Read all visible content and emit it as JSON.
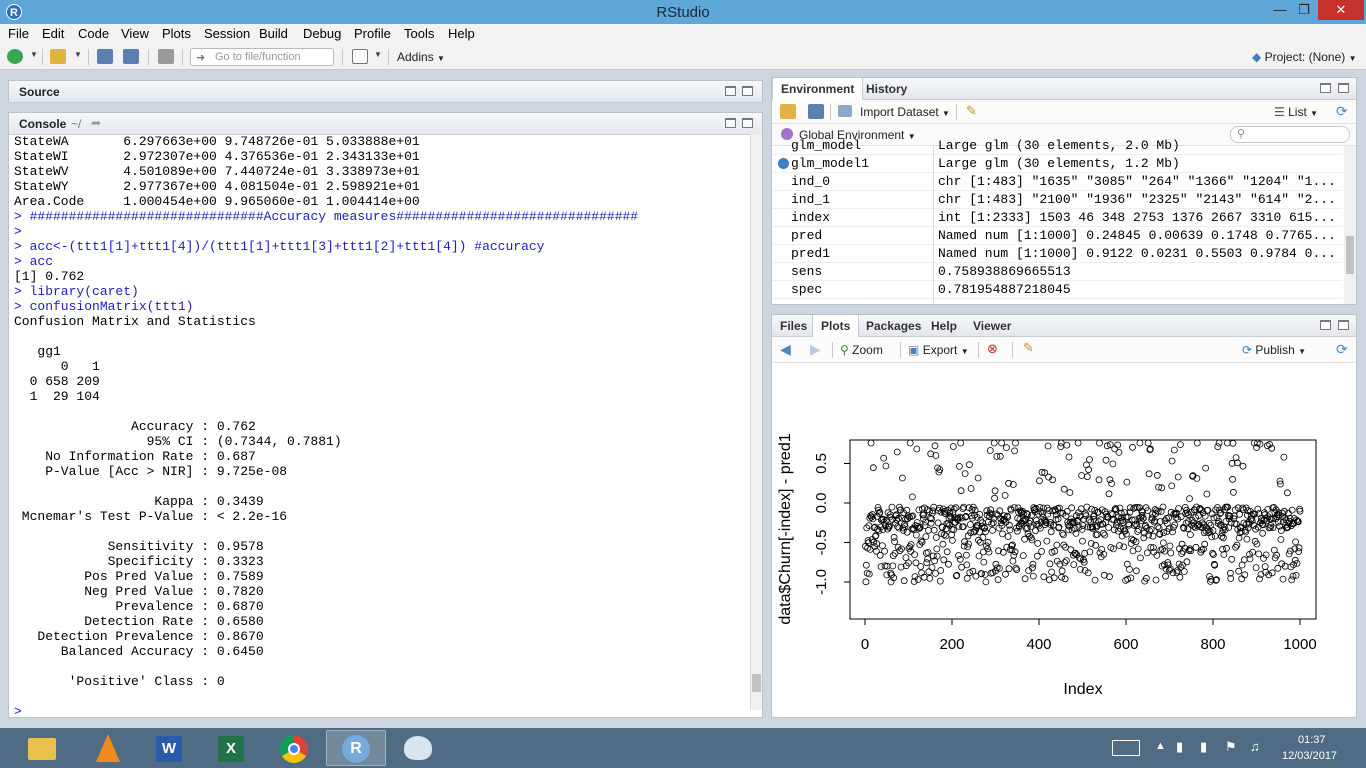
{
  "window": {
    "title": "RStudio",
    "app_icon": "R"
  },
  "menubar": {
    "items": [
      "File",
      "Edit",
      "Code",
      "View",
      "Plots",
      "Session",
      "Build",
      "Debug",
      "Profile",
      "Tools",
      "Help"
    ]
  },
  "toolbar": {
    "goto_placeholder": "Go to file/function",
    "addins_label": "Addins",
    "project_label": "Project: (None)"
  },
  "source_pane": {
    "title": "Source"
  },
  "console": {
    "title": "Console",
    "path": "~/",
    "lines": [
      {
        "text": "StateWA       6.297663e+00 9.748726e-01 5.033888e+01",
        "kind": "out"
      },
      {
        "text": "StateWI       2.972307e+00 4.376536e-01 2.343133e+01",
        "kind": "out"
      },
      {
        "text": "StateWV       4.501089e+00 7.440724e-01 3.338973e+01",
        "kind": "out"
      },
      {
        "text": "StateWY       2.977367e+00 4.081504e-01 2.598921e+01",
        "kind": "out"
      },
      {
        "text": "Area.Code     1.000454e+00 9.965060e-01 1.004414e+00",
        "kind": "out"
      },
      {
        "text": "> ##############################Accuracy measures###############################",
        "kind": "cmd"
      },
      {
        "text": ">",
        "kind": "cmd"
      },
      {
        "text": "> acc<-(ttt1[1]+ttt1[4])/(ttt1[1]+ttt1[3]+ttt1[2]+ttt1[4]) #accuracy",
        "kind": "cmd"
      },
      {
        "text": "> acc",
        "kind": "cmd"
      },
      {
        "text": "[1] 0.762",
        "kind": "out"
      },
      {
        "text": "> library(caret)",
        "kind": "cmd"
      },
      {
        "text": "> confusionMatrix(ttt1)",
        "kind": "cmd"
      },
      {
        "text": "Confusion Matrix and Statistics",
        "kind": "out"
      },
      {
        "text": "",
        "kind": "out"
      },
      {
        "text": "   gg1",
        "kind": "out"
      },
      {
        "text": "      0   1",
        "kind": "out"
      },
      {
        "text": "  0 658 209",
        "kind": "out"
      },
      {
        "text": "  1  29 104",
        "kind": "out"
      },
      {
        "text": "",
        "kind": "out"
      },
      {
        "text": "               Accuracy : 0.762",
        "kind": "out"
      },
      {
        "text": "                 95% CI : (0.7344, 0.7881)",
        "kind": "out"
      },
      {
        "text": "    No Information Rate : 0.687",
        "kind": "out"
      },
      {
        "text": "    P-Value [Acc > NIR] : 9.725e-08",
        "kind": "out"
      },
      {
        "text": "",
        "kind": "out"
      },
      {
        "text": "                  Kappa : 0.3439",
        "kind": "out"
      },
      {
        "text": " Mcnemar's Test P-Value : < 2.2e-16",
        "kind": "out"
      },
      {
        "text": "",
        "kind": "out"
      },
      {
        "text": "            Sensitivity : 0.9578",
        "kind": "out"
      },
      {
        "text": "            Specificity : 0.3323",
        "kind": "out"
      },
      {
        "text": "         Pos Pred Value : 0.7589",
        "kind": "out"
      },
      {
        "text": "         Neg Pred Value : 0.7820",
        "kind": "out"
      },
      {
        "text": "             Prevalence : 0.6870",
        "kind": "out"
      },
      {
        "text": "         Detection Rate : 0.6580",
        "kind": "out"
      },
      {
        "text": "   Detection Prevalence : 0.8670",
        "kind": "out"
      },
      {
        "text": "      Balanced Accuracy : 0.6450",
        "kind": "out"
      },
      {
        "text": "",
        "kind": "out"
      },
      {
        "text": "       'Positive' Class : 0",
        "kind": "out"
      },
      {
        "text": "",
        "kind": "out"
      },
      {
        "text": ">",
        "kind": "cmd"
      }
    ]
  },
  "environment": {
    "tabs": [
      "Environment",
      "History"
    ],
    "import_label": "Import Dataset",
    "view_mode": "List",
    "scope_label": "Global Environment",
    "rows": [
      {
        "name": "glm_model",
        "value": "Large glm (30 elements, 2.0 Mb)",
        "expandable": false
      },
      {
        "name": "glm_model1",
        "value": "Large glm (30 elements, 1.2 Mb)",
        "expandable": true
      },
      {
        "name": "ind_0",
        "value": "chr [1:483] \"1635\" \"3085\" \"264\" \"1366\" \"1204\" \"1...",
        "expandable": false
      },
      {
        "name": "ind_1",
        "value": "chr [1:483] \"2100\" \"1936\" \"2325\" \"2143\" \"614\" \"2...",
        "expandable": false
      },
      {
        "name": "index",
        "value": "int [1:2333] 1503 46 348 2753 1376 2667 3310 615...",
        "expandable": false
      },
      {
        "name": "pred",
        "value": "Named num [1:1000] 0.24845 0.00639 0.1748 0.7765...",
        "expandable": false
      },
      {
        "name": "pred1",
        "value": "Named num [1:1000] 0.9122 0.0231 0.5503 0.9784 0...",
        "expandable": false
      },
      {
        "name": "sens",
        "value": "0.758938869665513",
        "expandable": false
      },
      {
        "name": "spec",
        "value": "0.781954887218045",
        "expandable": false
      }
    ]
  },
  "files_pane": {
    "tabs": [
      "Files",
      "Plots",
      "Packages",
      "Help",
      "Viewer"
    ],
    "active_tab": "Plots",
    "zoom_label": "Zoom",
    "export_label": "Export",
    "publish_label": "Publish"
  },
  "chart_data": {
    "type": "scatter",
    "title": "",
    "xlabel": "Index",
    "ylabel": "data$Churn[-index] - pred1",
    "xlim": [
      0,
      1000
    ],
    "ylim": [
      -1,
      1
    ],
    "xticks": [
      "0",
      "200",
      "400",
      "600",
      "800",
      "1000"
    ],
    "yticks": [
      "-1.0",
      "-0.5",
      "0.0",
      "0.5"
    ],
    "point_count": 1000,
    "marker": "open-circle",
    "note_values": "residuals approximately in [-1, 0.9], dense band near -0.1"
  },
  "taskbar": {
    "apps": [
      "file-explorer",
      "vlc",
      "word",
      "excel",
      "chrome",
      "rstudio",
      "paint"
    ],
    "time": "01:37",
    "date": "12/03/2017"
  },
  "colors": {
    "titlebar": "#5da7d9",
    "console_cmd": "#1c1cc4",
    "taskbar": "#4f6c84"
  }
}
